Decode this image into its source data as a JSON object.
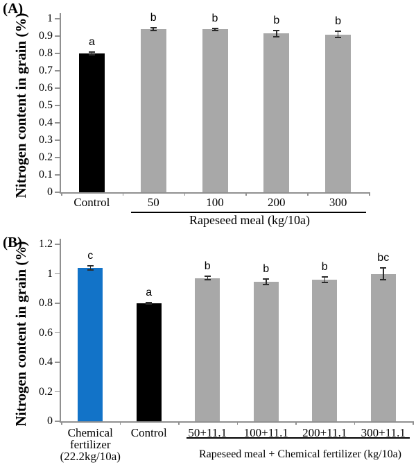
{
  "colors": {
    "bar_gray": "#a8a8a8",
    "bar_black": "#000000",
    "bar_blue": "#1273c8",
    "axis_gray": "#909090"
  },
  "chart_data": [
    {
      "type": "bar",
      "panel_label": "(A)",
      "ylabel": "Nitrogen content in grain (%)",
      "xlabel": "Rapeseed meal (kg/10a)",
      "ylim": [
        0,
        1.0
      ],
      "yticks": [
        "0",
        "0.1",
        "0.2",
        "0.3",
        "0.4",
        "0.5",
        "0.6",
        "0.7",
        "0.8",
        "0.9",
        "1"
      ],
      "grid": false,
      "legend": null,
      "categories": [
        "Control",
        "50",
        "100",
        "200",
        "300"
      ],
      "values": [
        0.8,
        0.94,
        0.94,
        0.915,
        0.91
      ],
      "errors": [
        0.008,
        0.008,
        0.006,
        0.018,
        0.018
      ],
      "sig_letters": [
        "a",
        "b",
        "b",
        "b",
        "b"
      ],
      "bar_colors": [
        "#000000",
        "#a8a8a8",
        "#a8a8a8",
        "#a8a8a8",
        "#a8a8a8"
      ],
      "group_underline_from_index": 1
    },
    {
      "type": "bar",
      "panel_label": "(B)",
      "ylabel": "Nitrogen content in grain (%)",
      "xlabel": "Rapeseed meal + Chemical fertilizer (kg/10a)",
      "ylim": [
        0,
        1.2
      ],
      "yticks": [
        "0",
        "0.2",
        "0.4",
        "0.6",
        "0.8",
        "1",
        "1.2"
      ],
      "grid": false,
      "legend": null,
      "categories": [
        "Chemical\nfertilizer\n(22.2kg/10a)",
        "Control",
        "50+11.1",
        "100+11.1",
        "200+11.1",
        "300+11.1"
      ],
      "values": [
        1.04,
        0.8,
        0.97,
        0.945,
        0.96,
        1.0
      ],
      "errors": [
        0.012,
        0.006,
        0.012,
        0.02,
        0.018,
        0.042
      ],
      "sig_letters": [
        "c",
        "a",
        "b",
        "b",
        "b",
        "bc"
      ],
      "bar_colors": [
        "#1273c8",
        "#000000",
        "#a8a8a8",
        "#a8a8a8",
        "#a8a8a8",
        "#a8a8a8"
      ],
      "group_underline_from_index": 2
    }
  ]
}
